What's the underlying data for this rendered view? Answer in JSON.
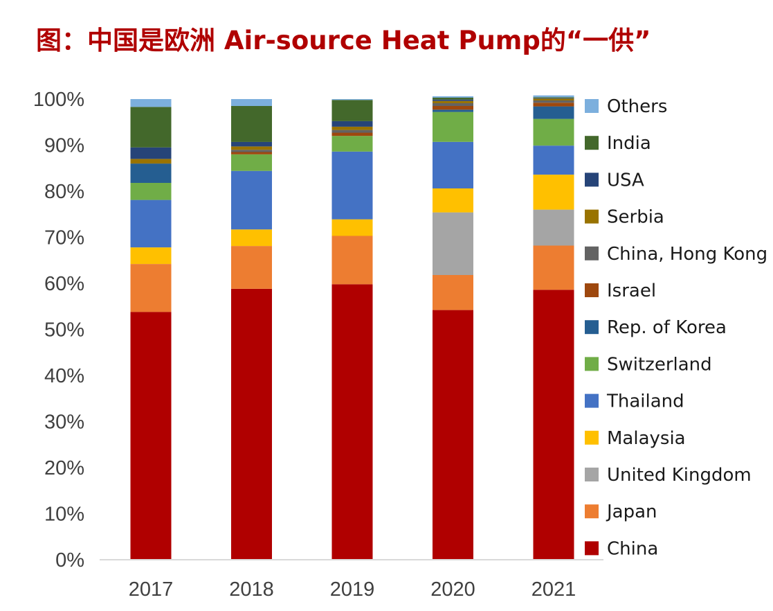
{
  "title": "图：中国是欧洲 Air-source Heat Pump的“一供”",
  "chart_data": {
    "type": "bar",
    "stacked": true,
    "percent": true,
    "categories": [
      "2017",
      "2018",
      "2019",
      "2020",
      "2021"
    ],
    "ylim": [
      0,
      100
    ],
    "yticks": [
      "0%",
      "10%",
      "20%",
      "30%",
      "40%",
      "50%",
      "60%",
      "70%",
      "80%",
      "90%",
      "100%"
    ],
    "grid": false,
    "legend_position": "right",
    "series": [
      {
        "name": "China",
        "color": "#B00000",
        "values": [
          53.8,
          58.8,
          59.8,
          54.2,
          58.6
        ]
      },
      {
        "name": "Japan",
        "color": "#ED7D31",
        "values": [
          10.4,
          9.3,
          10.5,
          7.6,
          9.6
        ]
      },
      {
        "name": "United Kingdom",
        "color": "#A5A5A5",
        "values": [
          0,
          0,
          0,
          13.6,
          7.8
        ]
      },
      {
        "name": "Malaysia",
        "color": "#FFC000",
        "values": [
          3.6,
          3.6,
          3.6,
          5.2,
          7.6
        ]
      },
      {
        "name": "Thailand",
        "color": "#4472C4",
        "values": [
          10.3,
          12.7,
          14.7,
          10.1,
          6.3
        ]
      },
      {
        "name": "Switzerland",
        "color": "#70AD47",
        "values": [
          3.7,
          3.6,
          3.4,
          6.5,
          5.8
        ]
      },
      {
        "name": "Rep. of Korea",
        "color": "#255E91",
        "values": [
          4.2,
          0,
          0,
          0.5,
          2.7
        ]
      },
      {
        "name": "Israel",
        "color": "#9E480E",
        "values": [
          0,
          0.5,
          0.7,
          0.8,
          0.8
        ]
      },
      {
        "name": "China, Hong Kong",
        "color": "#636363",
        "values": [
          0,
          0.5,
          0.6,
          0.6,
          0.5
        ]
      },
      {
        "name": "Serbia",
        "color": "#997300",
        "values": [
          1.0,
          0.7,
          0.7,
          0.5,
          0.4
        ]
      },
      {
        "name": "USA",
        "color": "#264478",
        "values": [
          2.5,
          1.0,
          1.2,
          0.3,
          0.1
        ]
      },
      {
        "name": "India",
        "color": "#43682B",
        "values": [
          8.8,
          7.8,
          4.6,
          0.4,
          0.2
        ]
      },
      {
        "name": "Others",
        "color": "#7CAFDD",
        "values": [
          1.7,
          1.5,
          0.2,
          0.3,
          0.4
        ]
      }
    ],
    "legend_order": [
      "Others",
      "India",
      "USA",
      "Serbia",
      "China, Hong Kong",
      "Israel",
      "Rep. of Korea",
      "Switzerland",
      "Thailand",
      "Malaysia",
      "United Kingdom",
      "Japan",
      "China"
    ]
  }
}
